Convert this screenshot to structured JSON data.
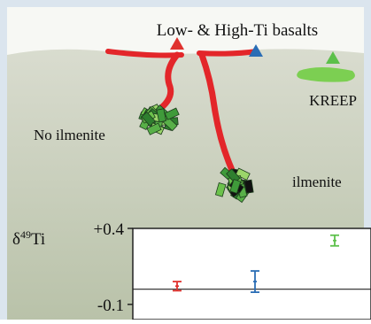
{
  "labels": {
    "basalts": "Low- & High-Ti basalts",
    "kreep": "KREEP",
    "no_ilmenite": "No ilmenite",
    "ilmenite": "ilmenite"
  },
  "chart_data": {
    "type": "errorbar",
    "ylabel": {
      "symbol": "δ",
      "superscript": "49",
      "element": "Ti"
    },
    "ylim": [
      -0.2,
      0.4
    ],
    "yticks": [
      {
        "value": 0.4,
        "label": "+0.4"
      },
      {
        "value": -0.1,
        "label": "-0.1"
      }
    ],
    "reference": 0,
    "points": [
      {
        "color": "#e0322e",
        "value": 0.02,
        "error": 0.03
      },
      {
        "color": "#2a6db5",
        "value": 0.05,
        "error": 0.07
      },
      {
        "color": "#5cc04a",
        "value": 0.32,
        "error": 0.035
      }
    ]
  }
}
